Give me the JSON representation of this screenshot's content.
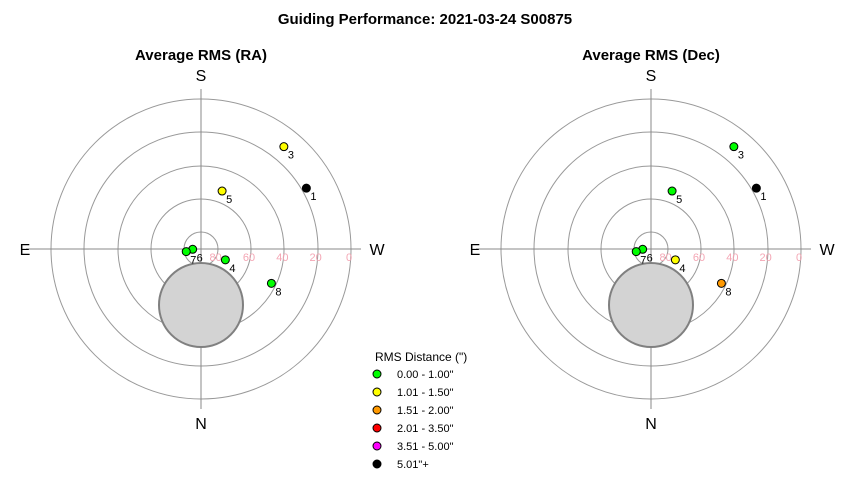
{
  "title": "Guiding Performance: 2021-03-24 S00875",
  "directions": {
    "top": "S",
    "bottom": "N",
    "left": "E",
    "right": "W"
  },
  "colors": {
    "ring": "#999999",
    "axis": "#888888",
    "tick_label": "#f4a6b4",
    "shade_fill": "#d3d3d3",
    "shade_stroke": "#808080"
  },
  "chart_data": [
    {
      "type": "scatter",
      "title": "Average RMS (RA)",
      "coordinate_system": "polar (altitude rings, azimuth)",
      "radial_ticks": [
        "80",
        "60",
        "40",
        "20",
        "0"
      ],
      "points": [
        {
          "label": "1",
          "az": 300,
          "alt": 17,
          "class": "5.01\"+"
        },
        {
          "label": "3",
          "az": 321,
          "alt": 11,
          "class": "1.01 - 1.50\""
        },
        {
          "label": "4",
          "az": 246,
          "alt": 74,
          "class": "0.00 - 1.00\""
        },
        {
          "label": "5",
          "az": 340,
          "alt": 53,
          "class": "1.01 - 1.50\""
        },
        {
          "label": "6",
          "az": 92,
          "alt": 85,
          "class": "0.00 - 1.00\""
        },
        {
          "label": "7",
          "az": 100,
          "alt": 81,
          "class": "0.00 - 1.00\""
        },
        {
          "label": "8",
          "az": 244,
          "alt": 43,
          "class": "0.00 - 1.00\""
        }
      ]
    },
    {
      "type": "scatter",
      "title": "Average RMS (Dec)",
      "coordinate_system": "polar (altitude rings, azimuth)",
      "radial_ticks": [
        "80",
        "60",
        "40",
        "20",
        "0"
      ],
      "points": [
        {
          "label": "1",
          "az": 300,
          "alt": 17,
          "class": "5.01\"+"
        },
        {
          "label": "3",
          "az": 321,
          "alt": 11,
          "class": "0.00 - 1.00\""
        },
        {
          "label": "4",
          "az": 246,
          "alt": 74,
          "class": "1.01 - 1.50\""
        },
        {
          "label": "5",
          "az": 340,
          "alt": 53,
          "class": "0.00 - 1.00\""
        },
        {
          "label": "6",
          "az": 92,
          "alt": 85,
          "class": "0.00 - 1.00\""
        },
        {
          "label": "7",
          "az": 100,
          "alt": 81,
          "class": "0.00 - 1.00\""
        },
        {
          "label": "8",
          "az": 244,
          "alt": 43,
          "class": "1.51 - 2.00\""
        }
      ]
    }
  ],
  "legend": {
    "title": "RMS Distance (\")",
    "items": [
      {
        "label": "0.00 - 1.00\"",
        "color": "#00ff00"
      },
      {
        "label": "1.01 - 1.50\"",
        "color": "#ffff00"
      },
      {
        "label": "1.51 - 2.00\"",
        "color": "#ff9900"
      },
      {
        "label": "2.01 - 3.50\"",
        "color": "#ff0000"
      },
      {
        "label": "3.51 - 5.00\"",
        "color": "#ff00ff"
      },
      {
        "label": "5.01\"+",
        "color": "#000000"
      }
    ]
  }
}
